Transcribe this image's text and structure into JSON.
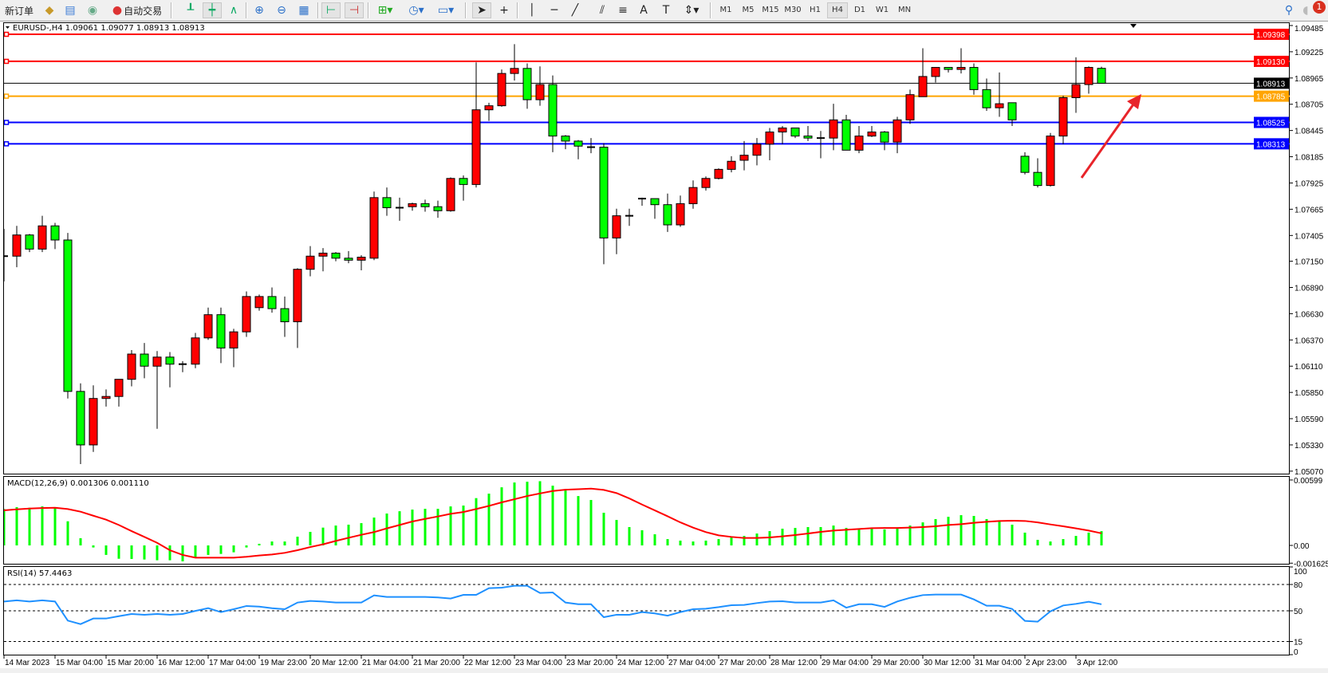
{
  "toolbar": {
    "new_order_label": "新订单",
    "auto_trading_label": "自动交易",
    "timeframes": [
      "M1",
      "M5",
      "M15",
      "M30",
      "H1",
      "H4",
      "D1",
      "W1",
      "MN"
    ],
    "active_timeframe": "H4",
    "notification_count": "1",
    "icons": [
      "new-order-icon",
      "navigator-icon",
      "market-watch-icon",
      "signals-icon",
      "auto-trading-icon",
      "bar-chart-icon",
      "candlestick-icon",
      "line-chart-icon",
      "zoom-in-icon",
      "zoom-out-icon",
      "tile-windows-icon",
      "chart-shift-icon",
      "autoscroll-icon",
      "new-chart-icon",
      "periods-icon",
      "templates-icon",
      "cursor-icon",
      "crosshair-icon",
      "vertical-line-icon",
      "horizontal-line-icon",
      "trendline-icon",
      "equidistant-channel-icon",
      "fibonacci-icon",
      "text-icon",
      "text-label-icon",
      "arrows-icon",
      "search-icon",
      "notifications-icon"
    ]
  },
  "chart": {
    "title": "EURUSD-,H4  1.09061 1.09077 1.08913 1.08913",
    "symbol": "EURUSD-",
    "timeframe": "H4",
    "colors": {
      "up": "#ff0000",
      "down": "#00ff00",
      "outline": "#000000",
      "arrow": "#e8242a"
    },
    "price_axis_labels": [
      "1.09485",
      "1.09225",
      "1.08965",
      "1.08705",
      "1.08445",
      "1.08185",
      "1.07925",
      "1.07665",
      "1.07405",
      "1.07150",
      "1.06890",
      "1.06630",
      "1.06370",
      "1.06110",
      "1.05850",
      "1.05590",
      "1.05330",
      "1.05070"
    ],
    "levels": [
      {
        "price": "1.09398",
        "color": "#ff0000"
      },
      {
        "price": "1.09130",
        "color": "#ff0000"
      },
      {
        "price": "1.08913",
        "color": "#000000",
        "bid": true
      },
      {
        "price": "1.08785",
        "color": "#ffa500"
      },
      {
        "price": "1.08525",
        "color": "#0000ff"
      },
      {
        "price": "1.08313",
        "color": "#0000ff"
      }
    ],
    "time_labels": [
      "14 Mar 2023",
      "15 Mar 04:00",
      "15 Mar 20:00",
      "16 Mar 12:00",
      "17 Mar 04:00",
      "19 Mar 23:00",
      "20 Mar 12:00",
      "21 Mar 04:00",
      "21 Mar 20:00",
      "22 Mar 12:00",
      "23 Mar 04:00",
      "23 Mar 20:00",
      "24 Mar 12:00",
      "27 Mar 04:00",
      "27 Mar 20:00",
      "28 Mar 12:00",
      "29 Mar 04:00",
      "29 Mar 20:00",
      "30 Mar 12:00",
      "31 Mar 04:00",
      "2 Apr 23:00",
      "3 Apr 12:00"
    ]
  },
  "macd": {
    "label": "MACD(12,26,9) 0.001306 0.001110",
    "axis_labels": [
      "0.00599",
      "0.00",
      "-0.001625"
    ]
  },
  "rsi": {
    "label": "RSI(14) 57.4463",
    "axis_labels": [
      "100",
      "80",
      "50",
      "15",
      "0"
    ]
  },
  "chart_data": [
    {
      "type": "candlestick",
      "ylim": [
        1.0507,
        1.09485
      ],
      "fields": [
        "open",
        "high",
        "low",
        "close"
      ],
      "candles": [
        [
          1.072,
          1.0747,
          1.0695,
          1.072
        ],
        [
          1.072,
          1.075,
          1.0709,
          1.0741
        ],
        [
          1.0741,
          1.0742,
          1.0724,
          1.0727
        ],
        [
          1.0727,
          1.076,
          1.0724,
          1.075
        ],
        [
          1.075,
          1.0753,
          1.0727,
          1.0736
        ],
        [
          1.0736,
          1.0743,
          1.0579,
          1.0586
        ],
        [
          1.0586,
          1.0594,
          1.0514,
          1.0533
        ],
        [
          1.0533,
          1.0592,
          1.0526,
          1.0579
        ],
        [
          1.0579,
          1.0588,
          1.0571,
          1.0581
        ],
        [
          1.0581,
          1.0598,
          1.0571,
          1.0598
        ],
        [
          1.0598,
          1.0627,
          1.0591,
          1.0623
        ],
        [
          1.0623,
          1.0634,
          1.0599,
          1.0611
        ],
        [
          1.0611,
          1.0626,
          1.0549,
          1.062
        ],
        [
          1.062,
          1.0625,
          1.059,
          1.0613
        ],
        [
          1.0613,
          1.0616,
          1.0605,
          1.0613
        ],
        [
          1.0613,
          1.0644,
          1.0609,
          1.0639
        ],
        [
          1.0639,
          1.0669,
          1.0637,
          1.0662
        ],
        [
          1.0662,
          1.0669,
          1.0614,
          1.0629
        ],
        [
          1.0629,
          1.0648,
          1.061,
          1.0645
        ],
        [
          1.0645,
          1.0685,
          1.064,
          1.068
        ],
        [
          1.0669,
          1.0682,
          1.0666,
          1.068
        ],
        [
          1.068,
          1.0689,
          1.0664,
          1.0668
        ],
        [
          1.0668,
          1.068,
          1.064,
          1.0655
        ],
        [
          1.0655,
          1.0708,
          1.0629,
          1.0707
        ],
        [
          1.0707,
          1.073,
          1.07,
          1.072
        ],
        [
          1.072,
          1.0728,
          1.0705,
          1.0723
        ],
        [
          1.0723,
          1.0724,
          1.0715,
          1.0718
        ],
        [
          1.0718,
          1.0725,
          1.0713,
          1.0716
        ],
        [
          1.0716,
          1.0721,
          1.0706,
          1.0719
        ],
        [
          1.0718,
          1.0784,
          1.0716,
          1.0778
        ],
        [
          1.0778,
          1.0788,
          1.076,
          1.0768
        ],
        [
          1.0768,
          1.0778,
          1.0755,
          1.0768
        ],
        [
          1.0769,
          1.0773,
          1.0765,
          1.0772
        ],
        [
          1.0772,
          1.0776,
          1.0764,
          1.0769
        ],
        [
          1.0769,
          1.0775,
          1.0758,
          1.0765
        ],
        [
          1.0765,
          1.0798,
          1.0764,
          1.0797
        ],
        [
          1.0797,
          1.08,
          1.0775,
          1.0791
        ],
        [
          1.0791,
          1.0912,
          1.0788,
          1.0865
        ],
        [
          1.0865,
          1.0872,
          1.0854,
          1.0869
        ],
        [
          1.0869,
          1.0905,
          1.0868,
          1.0901
        ],
        [
          1.0901,
          1.093,
          1.0894,
          1.0906
        ],
        [
          1.0906,
          1.0911,
          1.0866,
          1.0875
        ],
        [
          1.0875,
          1.0908,
          1.0869,
          1.089
        ],
        [
          1.089,
          1.0899,
          1.0823,
          1.0839
        ],
        [
          1.0839,
          1.084,
          1.0826,
          1.0834
        ],
        [
          1.0834,
          1.0835,
          1.0816,
          1.0829
        ],
        [
          1.0828,
          1.0837,
          1.0822,
          1.0828
        ],
        [
          1.0828,
          1.0832,
          1.0712,
          1.0738
        ],
        [
          1.0738,
          1.0767,
          1.0722,
          1.076
        ],
        [
          1.076,
          1.0767,
          1.075,
          1.076
        ],
        [
          1.0777,
          1.0778,
          1.077,
          1.0777
        ],
        [
          1.0777,
          1.0777,
          1.0757,
          1.0771
        ],
        [
          1.0771,
          1.0782,
          1.0744,
          1.0751
        ],
        [
          1.0751,
          1.078,
          1.0749,
          1.0772
        ],
        [
          1.0772,
          1.0795,
          1.0767,
          1.0788
        ],
        [
          1.0788,
          1.0799,
          1.0785,
          1.0797
        ],
        [
          1.0797,
          1.0807,
          1.0796,
          1.0806
        ],
        [
          1.0806,
          1.0819,
          1.0803,
          1.0814
        ],
        [
          1.0815,
          1.0834,
          1.0805,
          1.082
        ],
        [
          1.082,
          1.0837,
          1.081,
          1.0831
        ],
        [
          1.0831,
          1.0847,
          1.0815,
          1.0843
        ],
        [
          1.0843,
          1.0849,
          1.0831,
          1.0847
        ],
        [
          1.0847,
          1.0847,
          1.0837,
          1.0839
        ],
        [
          1.0839,
          1.0849,
          1.0834,
          1.0837
        ],
        [
          1.0837,
          1.0844,
          1.0817,
          1.0837
        ],
        [
          1.0837,
          1.0871,
          1.0825,
          1.0855
        ],
        [
          1.0855,
          1.086,
          1.0825,
          1.0825
        ],
        [
          1.0825,
          1.0849,
          1.0822,
          1.0839
        ],
        [
          1.0839,
          1.0849,
          1.0838,
          1.0843
        ],
        [
          1.0843,
          1.0844,
          1.0825,
          1.0833
        ],
        [
          1.0833,
          1.0858,
          1.0822,
          1.0855
        ],
        [
          1.0855,
          1.0885,
          1.0851,
          1.088
        ],
        [
          1.0878,
          1.0926,
          1.0878,
          1.0898
        ],
        [
          1.0898,
          1.0907,
          1.0892,
          1.0907
        ],
        [
          1.0907,
          1.0907,
          1.0902,
          1.0905
        ],
        [
          1.0905,
          1.0926,
          1.0901,
          1.0907
        ],
        [
          1.0907,
          1.0911,
          1.088,
          1.0885
        ],
        [
          1.0885,
          1.0896,
          1.0864,
          1.0867
        ],
        [
          1.0867,
          1.0902,
          1.0858,
          1.0871
        ],
        [
          1.0872,
          1.0872,
          1.0849,
          1.0855
        ],
        [
          1.0819,
          1.0823,
          1.0801,
          1.0803
        ],
        [
          1.0803,
          1.0817,
          1.0788,
          1.079
        ],
        [
          1.079,
          1.0842,
          1.0789,
          1.0839
        ],
        [
          1.0839,
          1.0879,
          1.0831,
          1.0877
        ],
        [
          1.0877,
          1.0917,
          1.0862,
          1.089
        ],
        [
          1.089,
          1.0908,
          1.0881,
          1.0907
        ],
        [
          1.09061,
          1.09077,
          1.08913,
          1.08913
        ]
      ]
    },
    {
      "type": "bar+line",
      "ylim": [
        -0.001625,
        0.00599
      ],
      "series": [
        {
          "name": "MACD",
          "style": "histogram",
          "color": "#00ff00",
          "values": [
            0.00333,
            0.0035,
            0.00345,
            0.00357,
            0.0035,
            0.00221,
            0.00066,
            -0.00019,
            -0.00087,
            -0.00122,
            -0.00124,
            -0.00129,
            -0.00136,
            -0.00136,
            -0.00146,
            -0.00112,
            -0.00087,
            -0.00078,
            -0.00063,
            -0.00019,
            0.00015,
            0.00036,
            0.00036,
            0.0008,
            0.00124,
            0.00163,
            0.00182,
            0.0019,
            0.00204,
            0.00255,
            0.00292,
            0.00313,
            0.00328,
            0.00335,
            0.00335,
            0.00357,
            0.00365,
            0.00433,
            0.00474,
            0.00532,
            0.00576,
            0.00583,
            0.00588,
            0.00547,
            0.00503,
            0.00452,
            0.00416,
            0.00299,
            0.00233,
            0.00168,
            0.00139,
            0.00102,
            0.00058,
            0.00044,
            0.00036,
            0.00044,
            0.00058,
            0.00078,
            0.00087,
            0.00109,
            0.00131,
            0.00153,
            0.0016,
            0.00168,
            0.00168,
            0.00182,
            0.0016,
            0.00153,
            0.0016,
            0.00146,
            0.0016,
            0.00182,
            0.00211,
            0.00241,
            0.00262,
            0.00277,
            0.0027,
            0.00241,
            0.00226,
            0.0019,
            0.00117,
            0.00051,
            0.00036,
            0.00058,
            0.00087,
            0.00117,
            0.001306
          ]
        },
        {
          "name": "Signal",
          "style": "line",
          "color": "#ff0000",
          "values": [
            0.00321,
            0.0033,
            0.00338,
            0.00342,
            0.00345,
            0.00333,
            0.00309,
            0.00272,
            0.00236,
            0.00187,
            0.00131,
            0.00078,
            0.00024,
            -0.00044,
            -0.00087,
            -0.00112,
            -0.00112,
            -0.00112,
            -0.00112,
            -0.00104,
            -0.00092,
            -0.00083,
            -0.00068,
            -0.00044,
            -0.00015,
            0.0001,
            0.00041,
            0.0007,
            0.00097,
            0.00122,
            0.00156,
            0.00187,
            0.00219,
            0.00243,
            0.00265,
            0.00289,
            0.00306,
            0.00333,
            0.00362,
            0.00394,
            0.00423,
            0.00452,
            0.00476,
            0.00498,
            0.0051,
            0.00515,
            0.0052,
            0.00508,
            0.00479,
            0.0043,
            0.00374,
            0.00321,
            0.00267,
            0.00211,
            0.00163,
            0.00122,
            0.00092,
            0.00078,
            0.00068,
            0.00068,
            0.00073,
            0.00083,
            0.00095,
            0.00109,
            0.00124,
            0.00136,
            0.00143,
            0.00151,
            0.00158,
            0.0016,
            0.0016,
            0.00163,
            0.00168,
            0.00175,
            0.00187,
            0.00194,
            0.00207,
            0.00216,
            0.00224,
            0.00226,
            0.00224,
            0.00211,
            0.00192,
            0.00175,
            0.00156,
            0.00136,
            0.00111
          ]
        }
      ]
    },
    {
      "type": "line",
      "ylim": [
        0,
        100
      ],
      "levels": [
        80,
        50,
        15
      ],
      "series": [
        {
          "name": "RSI(14)",
          "color": "#1e90ff",
          "values": [
            60.6,
            61.9,
            60.6,
            61.9,
            60.6,
            38.8,
            34.8,
            41.2,
            41.2,
            43.9,
            46.4,
            45.5,
            46.4,
            45.5,
            46.4,
            49.9,
            53.0,
            48.5,
            51.8,
            55.5,
            54.8,
            53.0,
            51.8,
            59.4,
            61.2,
            60.6,
            59.4,
            59.4,
            59.4,
            67.6,
            65.8,
            65.8,
            65.8,
            65.8,
            65.2,
            64.0,
            68.2,
            68.2,
            75.8,
            76.4,
            78.5,
            78.5,
            70.3,
            70.9,
            59.4,
            57.5,
            57.5,
            42.7,
            45.5,
            45.5,
            48.5,
            47.0,
            44.5,
            48.5,
            51.8,
            52.4,
            54.2,
            56.4,
            56.7,
            58.8,
            60.6,
            60.9,
            59.4,
            59.4,
            59.4,
            61.9,
            53.6,
            57.5,
            57.5,
            54.5,
            60.6,
            64.8,
            67.9,
            68.5,
            68.5,
            68.5,
            63.0,
            55.8,
            55.8,
            52.1,
            38.5,
            37.6,
            49.4,
            56.1,
            57.9,
            60.3,
            57.4463
          ]
        }
      ]
    }
  ]
}
